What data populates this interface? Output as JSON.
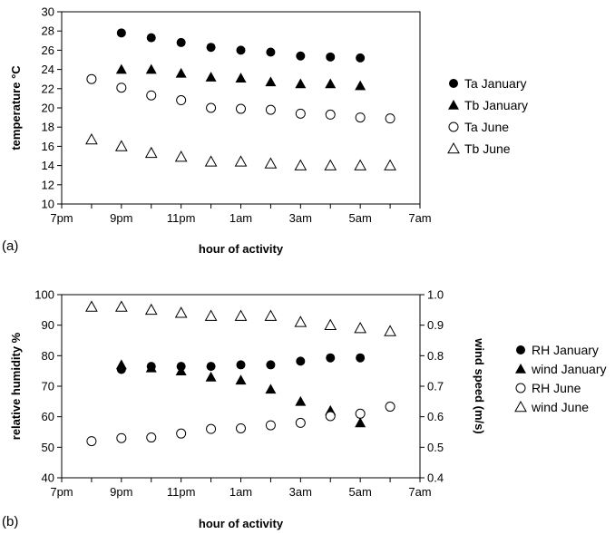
{
  "chart_data": [
    {
      "panel_label": "(a)",
      "type": "scatter",
      "x_categories": [
        "7pm",
        "8pm",
        "9pm",
        "10pm",
        "11pm",
        "12am",
        "1am",
        "2am",
        "3am",
        "4am",
        "5am",
        "6am",
        "7am"
      ],
      "x_tick_labels": [
        "7pm",
        "9pm",
        "11pm",
        "1am",
        "3am",
        "5am",
        "7am"
      ],
      "xlabel": "hour of activity",
      "ylabel": "temperature °C",
      "ylim": [
        10,
        30
      ],
      "y_ticks": [
        10,
        12,
        14,
        16,
        18,
        20,
        22,
        24,
        26,
        28,
        30
      ],
      "legend_position": "right",
      "series": [
        {
          "name": "Ta January",
          "marker": "filled-circle",
          "x": [
            "9pm",
            "10pm",
            "11pm",
            "12am",
            "1am",
            "2am",
            "3am",
            "4am",
            "5am"
          ],
          "y": [
            27.8,
            27.3,
            26.8,
            26.3,
            26.0,
            25.8,
            25.4,
            25.3,
            25.2
          ]
        },
        {
          "name": "Tb January",
          "marker": "filled-triangle",
          "x": [
            "9pm",
            "10pm",
            "11pm",
            "12am",
            "1am",
            "2am",
            "3am",
            "4am",
            "5am"
          ],
          "y": [
            24.0,
            24.0,
            23.6,
            23.2,
            23.1,
            22.7,
            22.5,
            22.5,
            22.3
          ]
        },
        {
          "name": "Ta June",
          "marker": "open-circle",
          "x": [
            "8pm",
            "9pm",
            "10pm",
            "11pm",
            "12am",
            "1am",
            "2am",
            "3am",
            "4am",
            "5am",
            "6am"
          ],
          "y": [
            23.0,
            22.1,
            21.3,
            20.8,
            20.0,
            19.9,
            19.8,
            19.4,
            19.3,
            19.0,
            18.9
          ]
        },
        {
          "name": "Tb June",
          "marker": "open-triangle",
          "x": [
            "8pm",
            "9pm",
            "10pm",
            "11pm",
            "12am",
            "1am",
            "2am",
            "3am",
            "4am",
            "5am",
            "6am"
          ],
          "y": [
            16.7,
            16.0,
            15.3,
            14.9,
            14.4,
            14.4,
            14.2,
            14.0,
            14.0,
            14.0,
            14.0
          ]
        }
      ]
    },
    {
      "panel_label": "(b)",
      "type": "scatter",
      "x_categories": [
        "7pm",
        "8pm",
        "9pm",
        "10pm",
        "11pm",
        "12am",
        "1am",
        "2am",
        "3am",
        "4am",
        "5am",
        "6am",
        "7am"
      ],
      "x_tick_labels": [
        "7pm",
        "9pm",
        "11pm",
        "1am",
        "3am",
        "5am",
        "7am"
      ],
      "xlabel": "hour of activity",
      "ylabel": "relative humidity %",
      "ylim": [
        40,
        100
      ],
      "y_ticks": [
        40,
        50,
        60,
        70,
        80,
        90,
        100
      ],
      "y2label": "wind speed (m/s)",
      "y2lim": [
        0.4,
        1.0
      ],
      "y2_ticks": [
        "0.4",
        "0.5",
        "0.6",
        "0.7",
        "0.8",
        "0.9",
        "1.0"
      ],
      "legend_position": "right",
      "series": [
        {
          "name": "RH January",
          "marker": "filled-circle",
          "axis": "left",
          "x": [
            "9pm",
            "10pm",
            "11pm",
            "12am",
            "1am",
            "2am",
            "3am",
            "4am",
            "5am"
          ],
          "y": [
            75.5,
            76.5,
            76.5,
            76.5,
            77.0,
            77.0,
            78.2,
            79.3,
            79.3
          ]
        },
        {
          "name": "wind January",
          "marker": "filled-triangle",
          "axis": "right",
          "x": [
            "9pm",
            "10pm",
            "11pm",
            "12am",
            "1am",
            "2am",
            "3am",
            "4am",
            "5am"
          ],
          "y": [
            0.77,
            0.76,
            0.75,
            0.73,
            0.72,
            0.69,
            0.65,
            0.62,
            0.58
          ]
        },
        {
          "name": "RH June",
          "marker": "open-circle",
          "axis": "left",
          "x": [
            "8pm",
            "9pm",
            "10pm",
            "11pm",
            "12am",
            "1am",
            "2am",
            "3am",
            "4am",
            "5am",
            "6am"
          ],
          "y": [
            52.0,
            53.0,
            53.2,
            54.5,
            56.0,
            56.2,
            57.2,
            58.0,
            60.2,
            61.0,
            63.3
          ]
        },
        {
          "name": "wind June",
          "marker": "open-triangle",
          "axis": "right",
          "x": [
            "8pm",
            "9pm",
            "10pm",
            "11pm",
            "12am",
            "1am",
            "2am",
            "3am",
            "4am",
            "5am",
            "6am"
          ],
          "y": [
            0.96,
            0.96,
            0.95,
            0.94,
            0.93,
            0.93,
            0.93,
            0.91,
            0.9,
            0.89,
            0.88
          ]
        }
      ]
    }
  ]
}
